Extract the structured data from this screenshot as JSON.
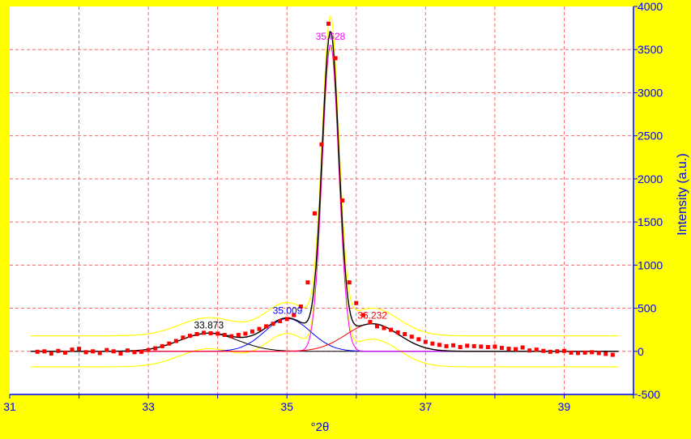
{
  "colors": {
    "background": "#ffff00",
    "plot_bg": "#ffffff",
    "grid": "#ff6666",
    "axis": "#0000ff",
    "data_points": "#ff0000",
    "fit_total": "#000000",
    "peak_33": "#000000",
    "peak_35_0": "#0000ff",
    "peak_35_6": "#ff00ff",
    "peak_36": "#ff0000",
    "envelope": "#ffff00"
  },
  "chart_data": {
    "type": "scatter",
    "xlabel": "°2θ",
    "ylabel": "Intensity (a.u.)",
    "xlim": [
      31,
      40
    ],
    "ylim": [
      -500,
      4000
    ],
    "xticks": [
      31,
      33,
      35,
      37,
      39
    ],
    "yticks": [
      -500,
      0,
      500,
      1000,
      1500,
      2000,
      2500,
      3000,
      3500,
      4000
    ],
    "grid": true,
    "peaks": [
      {
        "center": 33.873,
        "height": 210,
        "sigma": 0.42,
        "label": "33.873",
        "color": "#000000"
      },
      {
        "center": 35.009,
        "height": 380,
        "sigma": 0.33,
        "label": "35.009",
        "color": "#0000ff"
      },
      {
        "center": 35.628,
        "height": 3560,
        "sigma": 0.12,
        "label": "35.628",
        "color": "#ff00ff"
      },
      {
        "center": 36.232,
        "height": 320,
        "sigma": 0.38,
        "label": "36.232",
        "color": "#ff0000"
      }
    ],
    "points": [
      [
        31.4,
        -5
      ],
      [
        31.5,
        0
      ],
      [
        31.6,
        -25
      ],
      [
        31.7,
        5
      ],
      [
        31.8,
        -15
      ],
      [
        31.9,
        20
      ],
      [
        32.0,
        30
      ],
      [
        32.1,
        -10
      ],
      [
        32.2,
        0
      ],
      [
        32.3,
        -20
      ],
      [
        32.4,
        15
      ],
      [
        32.5,
        0
      ],
      [
        32.6,
        -25
      ],
      [
        32.7,
        10
      ],
      [
        32.8,
        -10
      ],
      [
        32.9,
        -5
      ],
      [
        33.0,
        15
      ],
      [
        33.1,
        35
      ],
      [
        33.2,
        60
      ],
      [
        33.3,
        90
      ],
      [
        33.4,
        120
      ],
      [
        33.5,
        160
      ],
      [
        33.6,
        180
      ],
      [
        33.7,
        200
      ],
      [
        33.8,
        215
      ],
      [
        33.9,
        210
      ],
      [
        34.0,
        205
      ],
      [
        34.1,
        190
      ],
      [
        34.2,
        175
      ],
      [
        34.3,
        190
      ],
      [
        34.4,
        205
      ],
      [
        34.5,
        230
      ],
      [
        34.6,
        260
      ],
      [
        34.7,
        290
      ],
      [
        34.8,
        320
      ],
      [
        34.9,
        350
      ],
      [
        35.0,
        375
      ],
      [
        35.1,
        420
      ],
      [
        35.2,
        520
      ],
      [
        35.3,
        800
      ],
      [
        35.4,
        1600
      ],
      [
        35.5,
        2400
      ],
      [
        35.6,
        3800
      ],
      [
        35.7,
        3400
      ],
      [
        35.8,
        1750
      ],
      [
        35.9,
        800
      ],
      [
        36.0,
        560
      ],
      [
        36.1,
        420
      ],
      [
        36.2,
        340
      ],
      [
        36.3,
        290
      ],
      [
        36.4,
        270
      ],
      [
        36.5,
        250
      ],
      [
        36.6,
        220
      ],
      [
        36.7,
        200
      ],
      [
        36.8,
        170
      ],
      [
        36.9,
        140
      ],
      [
        37.0,
        110
      ],
      [
        37.1,
        90
      ],
      [
        37.2,
        75
      ],
      [
        37.3,
        60
      ],
      [
        37.4,
        70
      ],
      [
        37.5,
        50
      ],
      [
        37.6,
        65
      ],
      [
        37.7,
        60
      ],
      [
        37.8,
        55
      ],
      [
        37.9,
        50
      ],
      [
        38.0,
        55
      ],
      [
        38.1,
        40
      ],
      [
        38.2,
        30
      ],
      [
        38.3,
        25
      ],
      [
        38.4,
        45
      ],
      [
        38.5,
        10
      ],
      [
        38.6,
        20
      ],
      [
        38.7,
        5
      ],
      [
        38.8,
        -5
      ],
      [
        38.9,
        0
      ],
      [
        39.0,
        5
      ],
      [
        39.1,
        -15
      ],
      [
        39.2,
        -20
      ],
      [
        39.3,
        -15
      ],
      [
        39.4,
        -10
      ],
      [
        39.5,
        -20
      ],
      [
        39.6,
        -30
      ],
      [
        39.7,
        -40
      ]
    ]
  }
}
